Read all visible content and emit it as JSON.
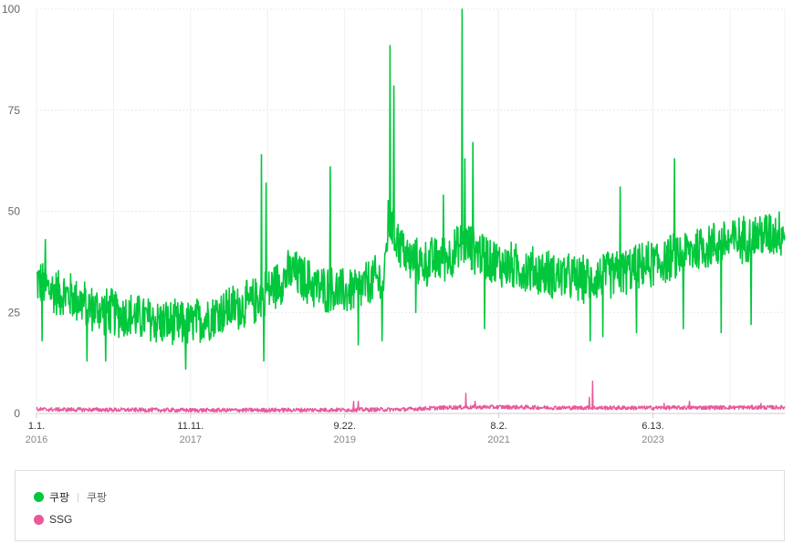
{
  "chart_data": {
    "type": "line",
    "ylim": [
      0,
      100
    ],
    "y_ticks": [
      "0",
      "25",
      "50",
      "75",
      "100"
    ],
    "x_ticks": [
      {
        "date": "2016-01-01",
        "label": "1.1.",
        "year": "2016"
      },
      {
        "date": "2017-11-11",
        "label": "11.11.",
        "year": "2017"
      },
      {
        "date": "2019-09-22",
        "label": "9.22.",
        "year": "2019"
      },
      {
        "date": "2021-08-02",
        "label": "8.2.",
        "year": "2021"
      },
      {
        "date": "2023-06-13",
        "label": "6.13.",
        "year": "2023"
      }
    ],
    "x_range": [
      "2016-01-01",
      "2025-01-15"
    ],
    "grid": true,
    "legend_position": "bottom",
    "series": [
      {
        "name": "쿠팡",
        "subtitle": "쿠팡",
        "color": "#00c73c",
        "points": [
          [
            "2016-01-01",
            33
          ],
          [
            "2016-02-15",
            31
          ],
          [
            "2016-04-01",
            30
          ],
          [
            "2016-06-01",
            29
          ],
          [
            "2016-09-01",
            26
          ],
          [
            "2016-12-01",
            25
          ],
          [
            "2017-03-01",
            24
          ],
          [
            "2017-06-01",
            23
          ],
          [
            "2017-09-01",
            22
          ],
          [
            "2017-11-11",
            22
          ],
          [
            "2018-02-01",
            24
          ],
          [
            "2018-05-01",
            26
          ],
          [
            "2018-08-01",
            27
          ],
          [
            "2018-11-01",
            31
          ],
          [
            "2019-02-01",
            35
          ],
          [
            "2019-04-01",
            33
          ],
          [
            "2019-06-01",
            31
          ],
          [
            "2019-09-22",
            30
          ],
          [
            "2019-12-01",
            31
          ],
          [
            "2020-02-01",
            33
          ],
          [
            "2020-03-15",
            33
          ],
          [
            "2020-04-01",
            48
          ],
          [
            "2020-05-01",
            44
          ],
          [
            "2020-07-01",
            38
          ],
          [
            "2020-09-01",
            37
          ],
          [
            "2020-11-01",
            38
          ],
          [
            "2021-01-01",
            39
          ],
          [
            "2021-03-01",
            42
          ],
          [
            "2021-05-01",
            40
          ],
          [
            "2021-08-02",
            37
          ],
          [
            "2021-11-01",
            36
          ],
          [
            "2022-02-01",
            35
          ],
          [
            "2022-05-01",
            34
          ],
          [
            "2022-08-01",
            33
          ],
          [
            "2022-11-01",
            34
          ],
          [
            "2023-02-01",
            35
          ],
          [
            "2023-06-13",
            37
          ],
          [
            "2023-10-01",
            39
          ],
          [
            "2024-01-01",
            41
          ],
          [
            "2024-04-01",
            42
          ],
          [
            "2024-07-01",
            43
          ],
          [
            "2024-10-01",
            44
          ],
          [
            "2025-01-15",
            45
          ]
        ],
        "noise": 5,
        "spikes": [
          [
            "2020-04-10",
            91
          ],
          [
            "2020-04-25",
            81
          ],
          [
            "2021-02-20",
            100
          ],
          [
            "2021-03-05",
            63
          ],
          [
            "2021-04-10",
            67
          ],
          [
            "2019-07-20",
            61
          ],
          [
            "2018-09-20",
            64
          ],
          [
            "2018-10-10",
            57
          ],
          [
            "2023-09-15",
            63
          ],
          [
            "2016-02-10",
            43
          ],
          [
            "2020-12-01",
            54
          ],
          [
            "2023-01-20",
            56
          ]
        ],
        "dips": [
          [
            "2017-10-20",
            11
          ],
          [
            "2016-08-10",
            13
          ],
          [
            "2016-11-01",
            13
          ],
          [
            "2018-10-01",
            13
          ],
          [
            "2019-11-20",
            17
          ],
          [
            "2020-03-05",
            18
          ],
          [
            "2022-09-10",
            18
          ],
          [
            "2022-11-05",
            19
          ],
          [
            "2023-04-01",
            20
          ],
          [
            "2023-10-25",
            21
          ],
          [
            "2024-04-10",
            20
          ],
          [
            "2024-08-20",
            22
          ],
          [
            "2021-06-01",
            21
          ],
          [
            "2020-08-01",
            25
          ],
          [
            "2016-01-25",
            18
          ]
        ]
      },
      {
        "name": "SSG",
        "color": "#e8589b",
        "points": [
          [
            "2016-01-01",
            1
          ],
          [
            "2018-01-01",
            0.8
          ],
          [
            "2019-09-01",
            0.9
          ],
          [
            "2020-06-01",
            1
          ],
          [
            "2021-01-01",
            1.5
          ],
          [
            "2021-08-02",
            1.6
          ],
          [
            "2022-06-01",
            1.4
          ],
          [
            "2023-06-13",
            1.4
          ],
          [
            "2024-06-01",
            1.5
          ],
          [
            "2025-01-15",
            1.5
          ]
        ],
        "noise": 0.5,
        "spikes": [
          [
            "2019-11-01",
            3
          ],
          [
            "2019-11-20",
            3
          ],
          [
            "2021-03-10",
            5
          ],
          [
            "2021-04-20",
            3
          ],
          [
            "2022-09-20",
            8
          ],
          [
            "2022-09-05",
            4
          ],
          [
            "2023-11-20",
            3
          ],
          [
            "2023-08-01",
            2.5
          ],
          [
            "2024-10-01",
            2.5
          ]
        ],
        "dips": []
      }
    ]
  }
}
